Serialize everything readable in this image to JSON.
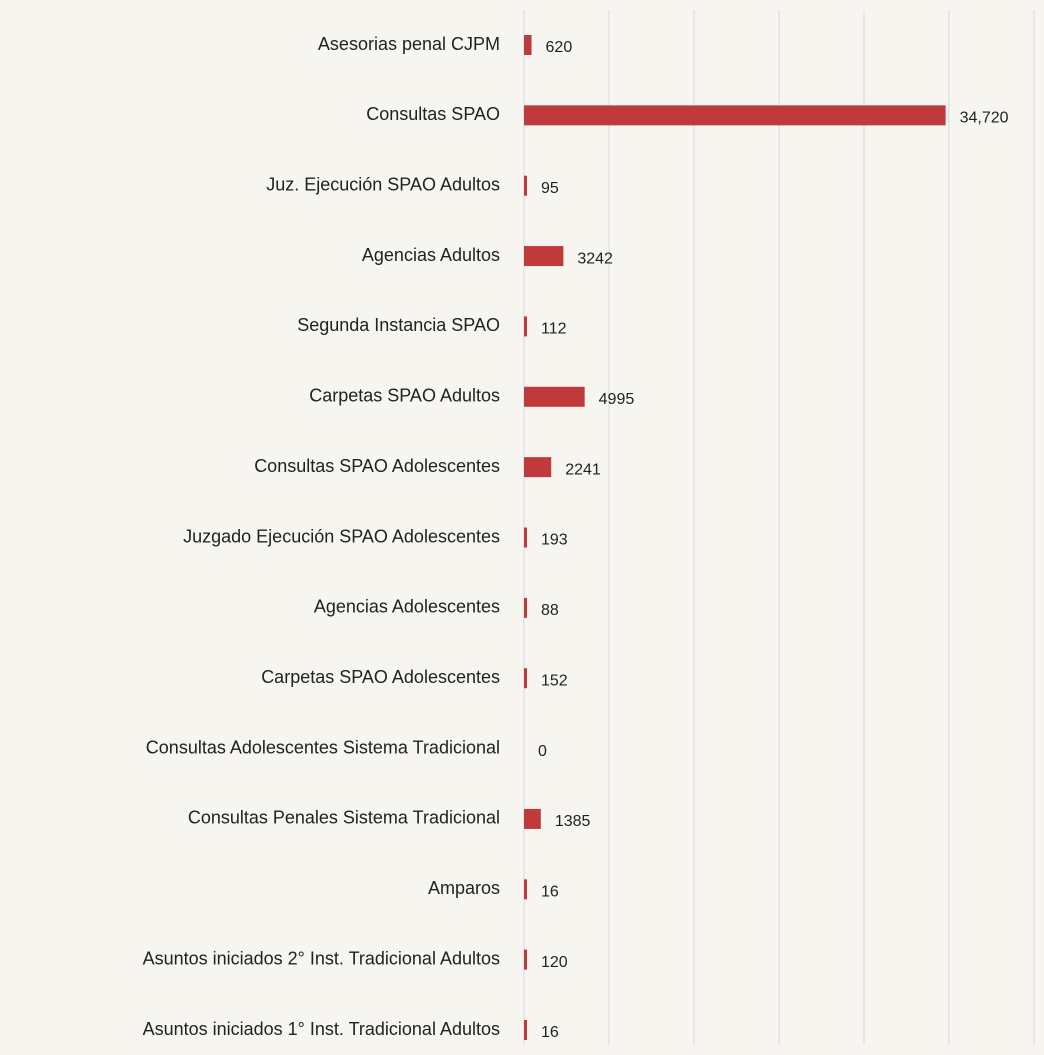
{
  "chart_data": {
    "type": "barh",
    "categories": [
      "Asesorias penal CJPM",
      "Consultas SPAO",
      "Juz. Ejecución SPAO Adultos",
      "Agencias Adultos",
      "Segunda Instancia SPAO",
      "Carpetas SPAO Adultos",
      "Consultas SPAO Adolescentes",
      "Juzgado Ejecución SPAO Adolescentes",
      "Agencias Adolescentes",
      "Carpetas SPAO Adolescentes",
      "Consultas Adolescentes Sistema Tradicional",
      "Consultas Penales Sistema Tradicional",
      "Amparos",
      "Asuntos iniciados 2° Inst. Tradicional Adultos",
      "Asuntos iniciados 1° Inst. Tradicional Adultos"
    ],
    "values": [
      620,
      34720,
      95,
      3242,
      112,
      4995,
      2241,
      193,
      88,
      152,
      0,
      1385,
      16,
      120,
      16
    ],
    "value_labels": [
      "620",
      "34,720",
      "95",
      "3242",
      "112",
      "4995",
      "2241",
      "193",
      "88",
      "152",
      "0",
      "1385",
      "16",
      "120",
      "16"
    ],
    "color": "#c0393b",
    "xlim": [
      0,
      42000
    ],
    "xticks": [
      0,
      7000,
      14000,
      21000,
      28000,
      35000,
      42000
    ],
    "grid": true
  }
}
